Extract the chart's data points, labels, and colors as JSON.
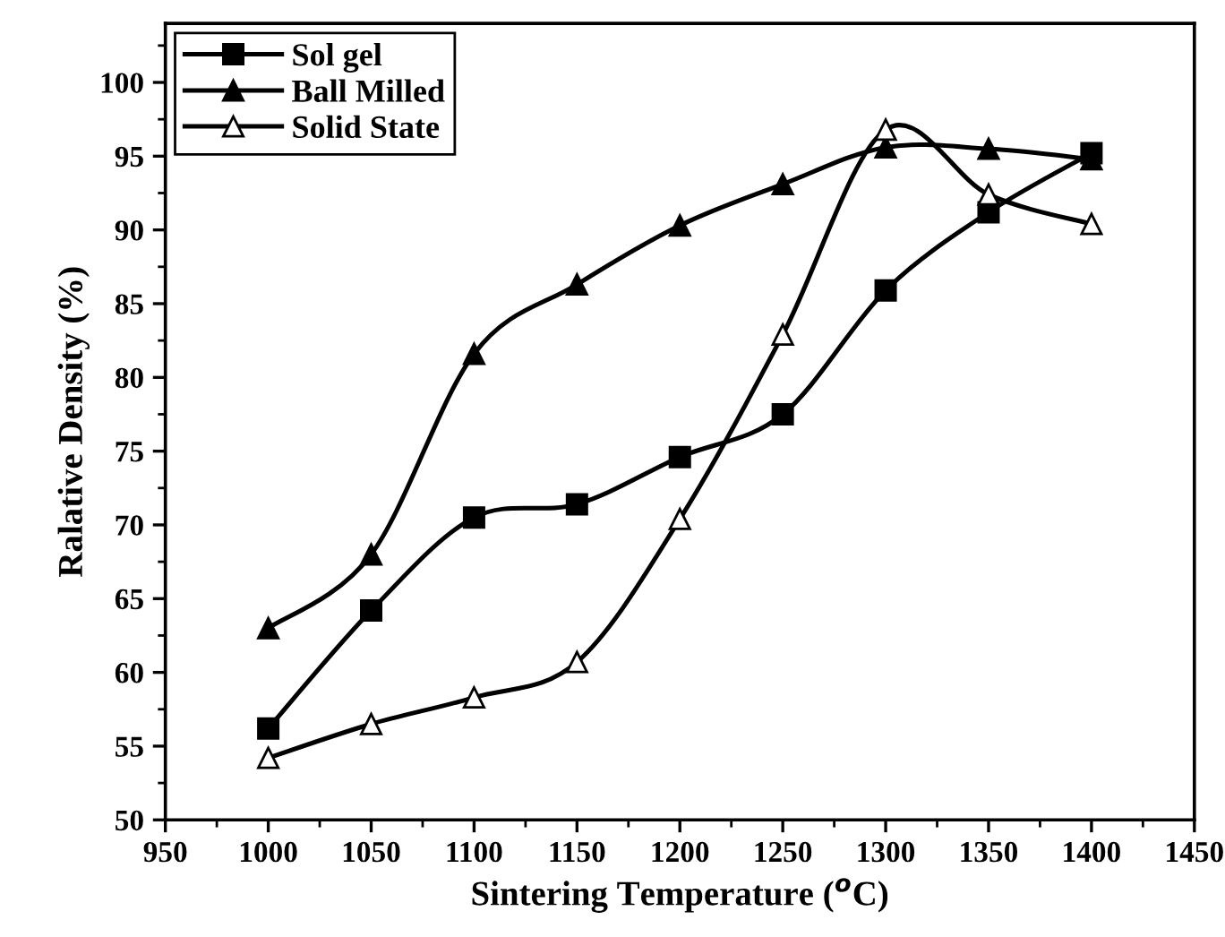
{
  "chart_data": {
    "type": "line",
    "xlabel": "Sintering Temperature ($^{o}$C)",
    "ylabel": "Ralative Density (%)",
    "x": [
      1000,
      1050,
      1100,
      1150,
      1200,
      1250,
      1300,
      1350,
      1400
    ],
    "series": [
      {
        "name": "Sol gel",
        "color": "#000000",
        "marker": "square",
        "values": [
          56.2,
          64.2,
          70.5,
          71.4,
          74.6,
          77.5,
          85.9,
          91.2,
          95.2
        ]
      },
      {
        "name": "Ball Milled",
        "color": "#000000",
        "marker": "triangle",
        "values": [
          63.0,
          68.0,
          81.6,
          86.3,
          90.3,
          93.1,
          95.6,
          95.5,
          94.8
        ]
      },
      {
        "name": "Solid State",
        "color": "#000000",
        "marker": "triangle_open",
        "values": [
          54.2,
          56.5,
          58.3,
          60.7,
          70.4,
          82.9,
          96.8,
          92.4,
          90.4
        ]
      }
    ],
    "xlim": [
      950,
      1450
    ],
    "xticks": [
      950,
      1000,
      1050,
      1100,
      1150,
      1200,
      1250,
      1300,
      1350,
      1400,
      1450
    ],
    "ylim": [
      50,
      104
    ],
    "yticks": [
      50,
      55,
      60,
      65,
      70,
      75,
      80,
      85,
      90,
      95,
      100
    ],
    "grid": false,
    "legend": "top left",
    "line_style": "solid"
  }
}
